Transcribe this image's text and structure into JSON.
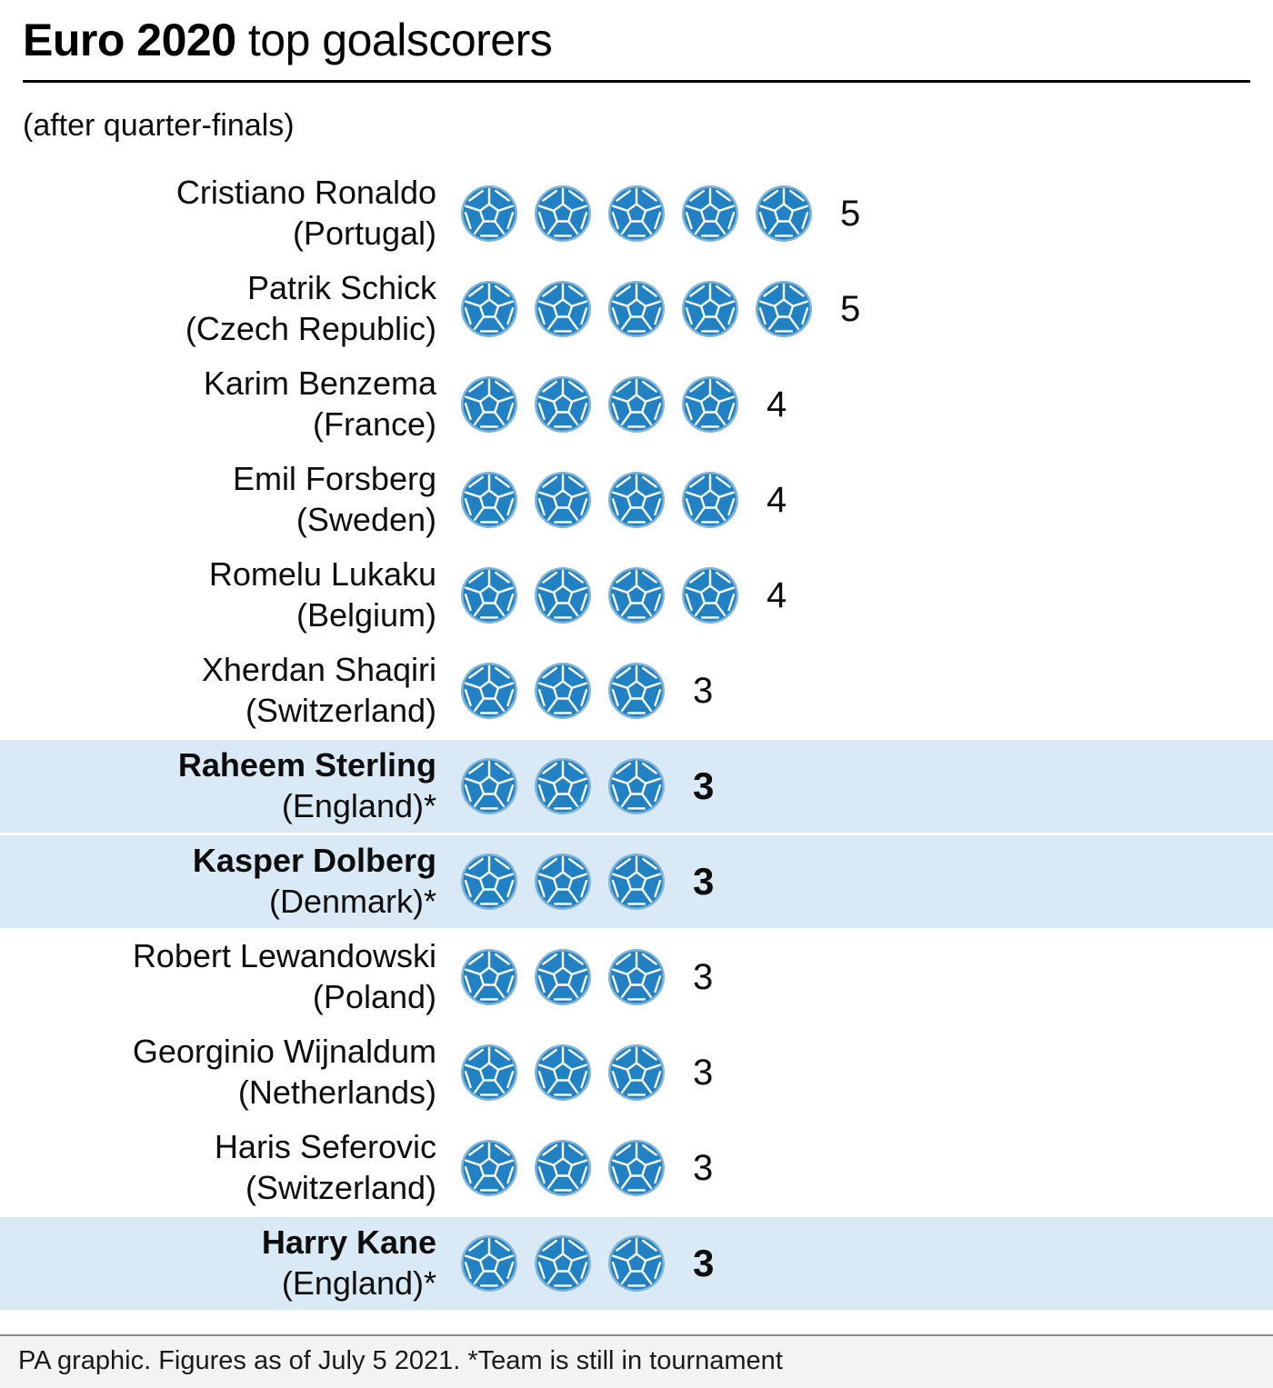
{
  "header": {
    "title_bold": "Euro 2020",
    "title_rest": " top goalscorers",
    "subtitle": "(after quarter-finals)"
  },
  "footer": {
    "text": "PA graphic. Figures as of July 5 2021. *Team is still in tournament"
  },
  "icons": {
    "goal_icon": "football-icon"
  },
  "chart_data": {
    "type": "pictogram",
    "title": "Euro 2020 top goalscorers",
    "subtitle": "(after quarter-finals)",
    "unit": "goals",
    "footnote": "PA graphic. Figures as of July 5 2021. *Team is still in tournament",
    "highlight_meaning": "Team is still in tournament",
    "colors": {
      "ball_fill": "#2181c2",
      "ball_halo": "#7fb3d8",
      "ball_lines": "#ffffff",
      "highlight_row_bg": "#d9eaf6"
    },
    "players": [
      {
        "name": "Cristiano Ronaldo",
        "country": "(Portugal)",
        "goals": 5,
        "highlighted": false
      },
      {
        "name": "Patrik Schick",
        "country": "(Czech Republic)",
        "goals": 5,
        "highlighted": false
      },
      {
        "name": "Karim Benzema",
        "country": "(France)",
        "goals": 4,
        "highlighted": false
      },
      {
        "name": "Emil Forsberg",
        "country": "(Sweden)",
        "goals": 4,
        "highlighted": false
      },
      {
        "name": "Romelu Lukaku",
        "country": "(Belgium)",
        "goals": 4,
        "highlighted": false
      },
      {
        "name": "Xherdan Shaqiri",
        "country": "(Switzerland)",
        "goals": 3,
        "highlighted": false
      },
      {
        "name": "Raheem Sterling",
        "country": "(England)*",
        "goals": 3,
        "highlighted": true
      },
      {
        "name": "Kasper Dolberg",
        "country": "(Denmark)*",
        "goals": 3,
        "highlighted": true
      },
      {
        "name": "Robert Lewandowski",
        "country": "(Poland)",
        "goals": 3,
        "highlighted": false
      },
      {
        "name": "Georginio Wijnaldum",
        "country": "(Netherlands)",
        "goals": 3,
        "highlighted": false
      },
      {
        "name": "Haris Seferovic",
        "country": "(Switzerland)",
        "goals": 3,
        "highlighted": false
      },
      {
        "name": "Harry Kane",
        "country": "(England)*",
        "goals": 3,
        "highlighted": true
      }
    ]
  }
}
